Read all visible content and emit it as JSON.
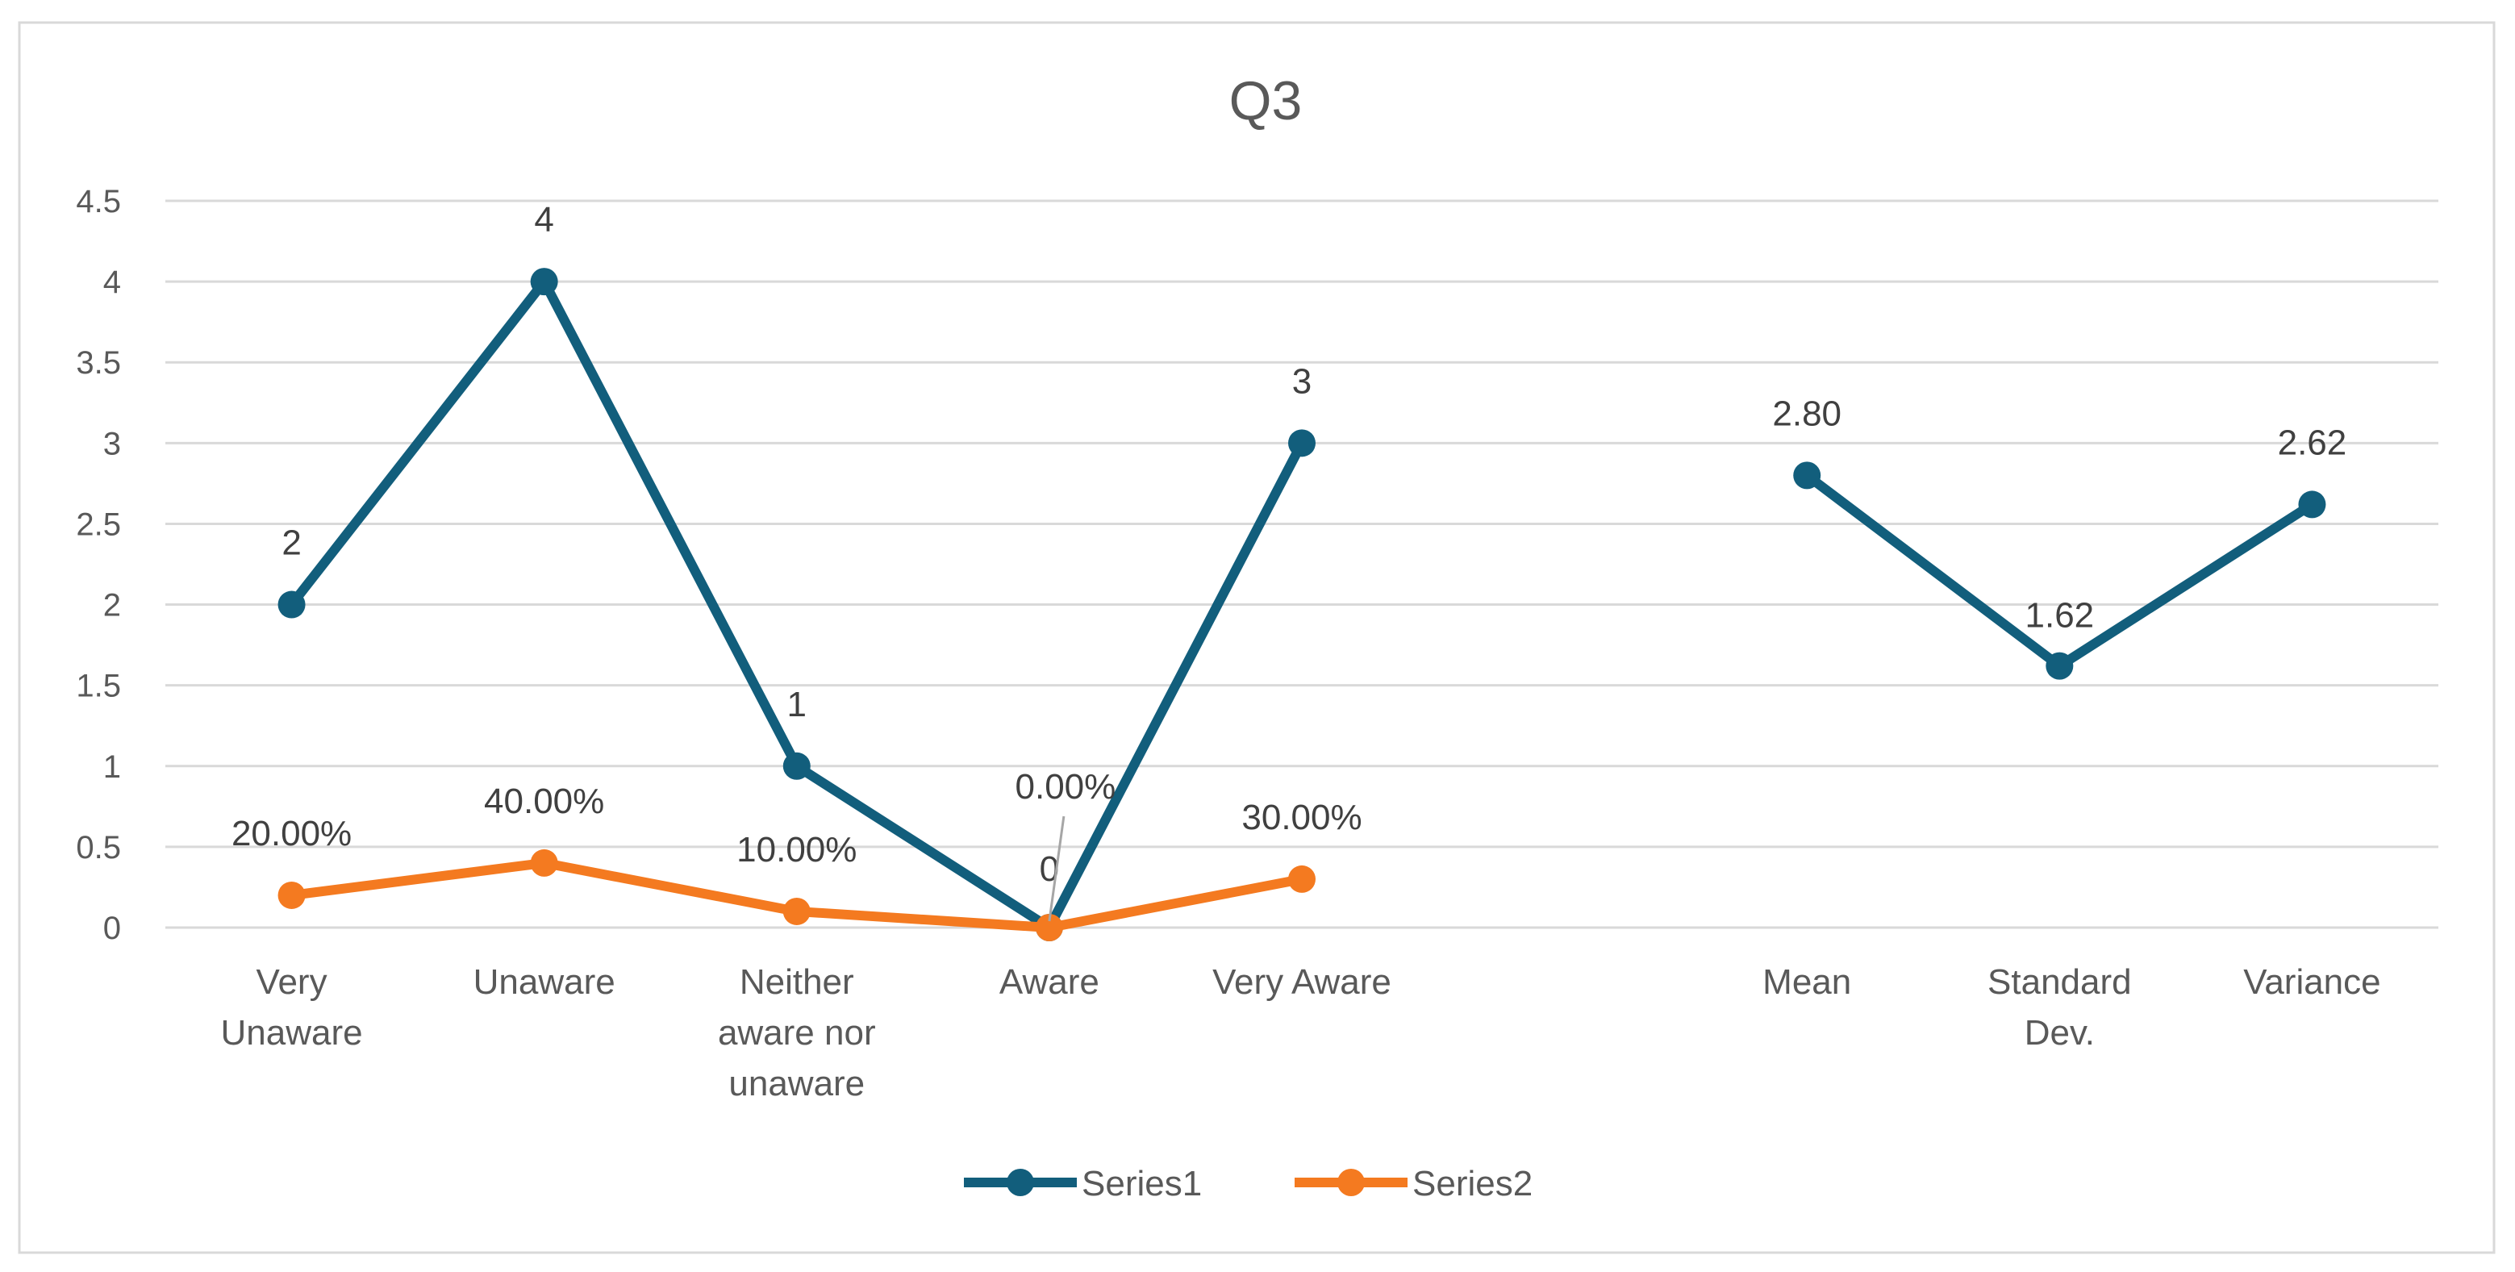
{
  "chart_data": {
    "type": "line",
    "title": "Q3",
    "xlabel": "",
    "ylabel": "",
    "ylim": [
      0,
      4.5
    ],
    "yticks": [
      "0",
      "0.5",
      "1",
      "1.5",
      "2",
      "2.5",
      "3",
      "3.5",
      "4",
      "4.5"
    ],
    "grid": true,
    "legend_position": "bottom",
    "categories": [
      [
        "Very",
        "Unaware"
      ],
      [
        "Unaware"
      ],
      [
        "Neither",
        "aware nor",
        "unaware"
      ],
      [
        "Aware"
      ],
      [
        "Very Aware"
      ],
      [
        ""
      ],
      [
        "Mean"
      ],
      [
        "Standard",
        "Dev."
      ],
      [
        "Variance"
      ]
    ],
    "series": [
      {
        "name": "Series1",
        "color": "#125E7C",
        "values": [
          2,
          4,
          1,
          0,
          3,
          null,
          2.8,
          1.62,
          2.62
        ],
        "labels": [
          "2",
          "4",
          "1",
          "0",
          "3",
          null,
          "2.80",
          "1.62",
          "2.62"
        ]
      },
      {
        "name": "Series2",
        "color": "#F47A20",
        "values": [
          0.2,
          0.4,
          0.1,
          0,
          0.3,
          null,
          null,
          null,
          null
        ],
        "labels": [
          "20.00%",
          "40.00%",
          "10.00%",
          "0.00%",
          "30.00%",
          null,
          null,
          null,
          null
        ]
      }
    ]
  }
}
